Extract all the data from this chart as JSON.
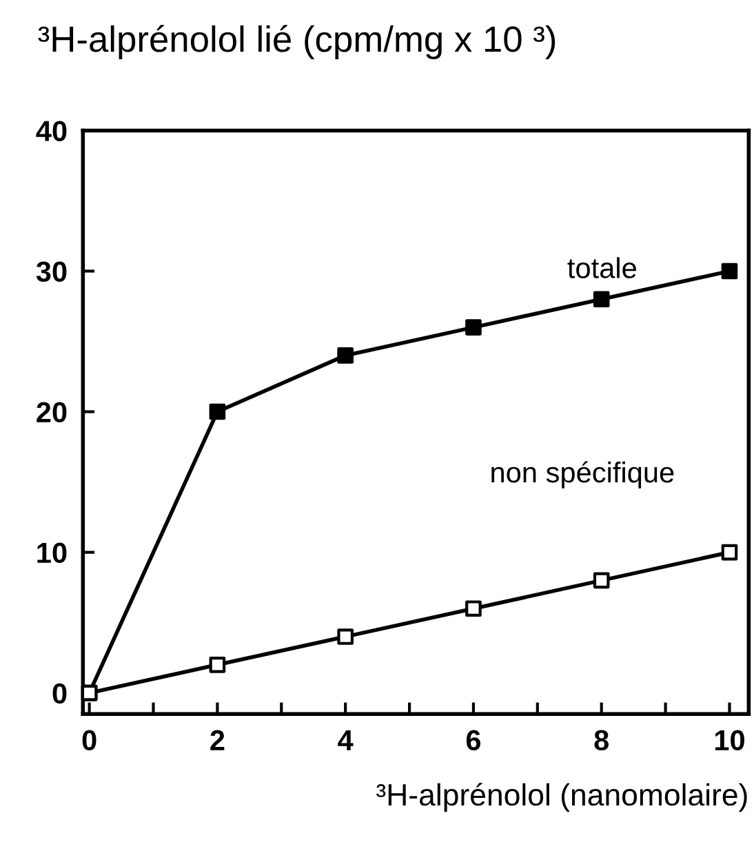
{
  "chart_data": {
    "type": "line",
    "ylabel": "³H-alprénolol lié (cpm/mg x 10 ³)",
    "xlabel": "³H-alprénolol (nanomolaire)",
    "x": [
      0,
      2,
      4,
      6,
      8,
      10
    ],
    "series": [
      {
        "name": "totale",
        "color": "#000000",
        "colors": [
          "#000000",
          "#000000",
          "#000000",
          "#000000",
          "#000000",
          "#000000"
        ],
        "values": [
          0,
          20,
          24,
          26,
          28,
          30
        ]
      },
      {
        "name": "non spécifique",
        "color": "#000000",
        "colors": [
          "#ffffff",
          "#ffffff",
          "#ffffff",
          "#ffffff",
          "#ffffff",
          "#ffffff"
        ],
        "values": [
          0,
          2,
          4,
          6,
          8,
          10
        ]
      }
    ],
    "marker": "square",
    "line_style": "solid",
    "grid": false,
    "legend": false,
    "xlim": [
      -0.1,
      10.3
    ],
    "ylim": [
      -1.5,
      40
    ],
    "xticks": [
      0,
      {
        "value": 1,
        "label": null
      },
      2,
      {
        "value": 3,
        "label": null
      },
      4,
      {
        "value": 5,
        "label": null
      },
      6,
      {
        "value": 7,
        "label": null
      },
      8,
      {
        "value": 9,
        "label": null
      },
      10
    ],
    "yticks": [
      0,
      10,
      20,
      30,
      40
    ]
  }
}
